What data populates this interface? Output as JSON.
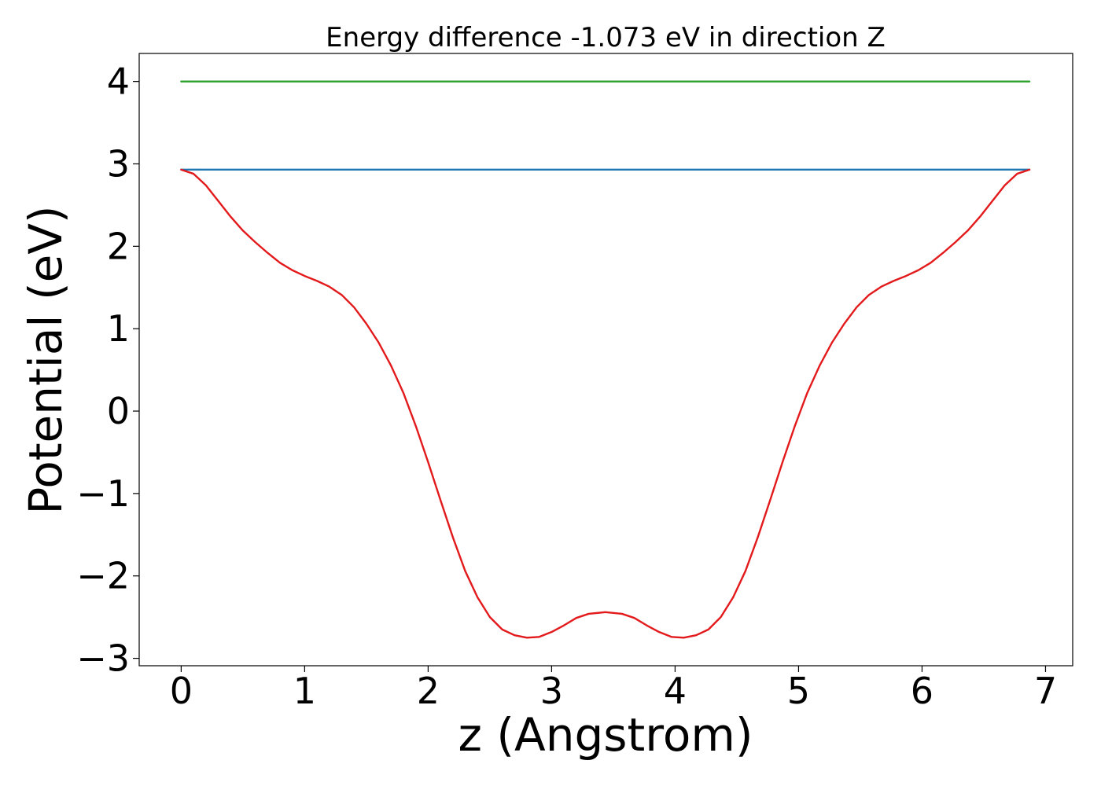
{
  "chart_data": {
    "type": "line",
    "title": "Energy difference -1.073 eV in direction Z",
    "xlabel": "z (Angstrom)",
    "ylabel": "Potential (eV)",
    "xlim": [
      -0.34,
      7.22
    ],
    "ylim": [
      -3.09,
      4.34
    ],
    "x_ticks": [
      0,
      1,
      2,
      3,
      4,
      5,
      6,
      7
    ],
    "x_tick_labels": [
      "0",
      "1",
      "2",
      "3",
      "4",
      "5",
      "6",
      "7"
    ],
    "y_ticks": [
      -3,
      -2,
      -1,
      0,
      1,
      2,
      3,
      4
    ],
    "y_tick_labels": [
      "−3",
      "−2",
      "−1",
      "0",
      "1",
      "2",
      "3",
      "4"
    ],
    "grid": false,
    "series": [
      {
        "color": "#2ca02c",
        "x": [
          0,
          6.87
        ],
        "y": [
          4.0,
          4.0
        ]
      },
      {
        "color": "#1f77b4",
        "x": [
          0,
          6.87
        ],
        "y": [
          2.93,
          2.93
        ]
      },
      {
        "color": "#e31a1c",
        "x": [
          0,
          0.1,
          0.2,
          0.3,
          0.4,
          0.5,
          0.6,
          0.7,
          0.8,
          0.9,
          1.0,
          1.1,
          1.2,
          1.3,
          1.4,
          1.5,
          1.6,
          1.7,
          1.8,
          1.9,
          2.0,
          2.1,
          2.2,
          2.3,
          2.4,
          2.5,
          2.6,
          2.7,
          2.8,
          2.9,
          3.0,
          3.1,
          3.2,
          3.3,
          3.435,
          3.57,
          3.67,
          3.77,
          3.87,
          3.97,
          4.07,
          4.17,
          4.27,
          4.37,
          4.47,
          4.57,
          4.67,
          4.77,
          4.87,
          4.97,
          5.07,
          5.17,
          5.27,
          5.37,
          5.47,
          5.57,
          5.67,
          5.77,
          5.87,
          5.97,
          6.07,
          6.17,
          6.27,
          6.37,
          6.47,
          6.57,
          6.67,
          6.77,
          6.87
        ],
        "y": [
          2.93,
          2.88,
          2.74,
          2.55,
          2.36,
          2.19,
          2.05,
          1.92,
          1.8,
          1.71,
          1.64,
          1.58,
          1.51,
          1.41,
          1.26,
          1.06,
          0.83,
          0.55,
          0.22,
          -0.18,
          -0.62,
          -1.08,
          -1.53,
          -1.94,
          -2.26,
          -2.5,
          -2.65,
          -2.72,
          -2.75,
          -2.74,
          -2.68,
          -2.6,
          -2.51,
          -2.46,
          -2.44,
          -2.46,
          -2.51,
          -2.6,
          -2.68,
          -2.74,
          -2.75,
          -2.72,
          -2.65,
          -2.5,
          -2.26,
          -1.94,
          -1.53,
          -1.08,
          -0.62,
          -0.18,
          0.22,
          0.55,
          0.83,
          1.06,
          1.26,
          1.41,
          1.51,
          1.58,
          1.64,
          1.71,
          1.8,
          1.92,
          2.05,
          2.19,
          2.36,
          2.55,
          2.74,
          2.88,
          2.93
        ]
      }
    ]
  }
}
